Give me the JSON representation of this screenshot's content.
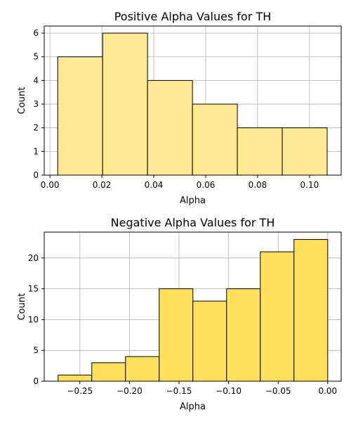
{
  "chart_data": [
    {
      "type": "bar",
      "title": "Positive Alpha Values for TH",
      "xlabel": "Alpha",
      "ylabel": "Count",
      "bin_edges": [
        0.003,
        0.0203,
        0.0376,
        0.0549,
        0.0722,
        0.0895,
        0.1068
      ],
      "values": [
        5,
        6,
        4,
        3,
        2,
        2
      ],
      "xlim": [
        -0.0022,
        0.1122
      ],
      "ylim": [
        0,
        6.3
      ],
      "xticks": [
        0.0,
        0.02,
        0.04,
        0.06,
        0.08,
        0.1
      ],
      "xtick_labels": [
        "0.00",
        "0.02",
        "0.04",
        "0.06",
        "0.08",
        "0.10"
      ],
      "yticks": [
        0,
        1,
        2,
        3,
        4,
        5,
        6
      ],
      "ytick_labels": [
        "0",
        "1",
        "2",
        "3",
        "4",
        "5",
        "6"
      ],
      "grid": true,
      "bar_color": "#ffe994",
      "edge_color": "#000000"
    },
    {
      "type": "bar",
      "title": "Negative Alpha Values for TH",
      "xlabel": "Alpha",
      "ylabel": "Count",
      "bin_edges": [
        -0.272,
        -0.238,
        -0.204,
        -0.17,
        -0.136,
        -0.102,
        -0.068,
        -0.034,
        0.0
      ],
      "values": [
        1,
        3,
        4,
        15,
        13,
        15,
        21,
        23
      ],
      "xlim": [
        -0.286,
        0.0136
      ],
      "ylim": [
        0,
        24.2
      ],
      "xticks": [
        -0.25,
        -0.2,
        -0.15,
        -0.1,
        -0.05,
        0.0
      ],
      "xtick_labels": [
        "−0.25",
        "−0.20",
        "−0.15",
        "−0.10",
        "−0.05",
        "0.00"
      ],
      "yticks": [
        0,
        5,
        10,
        15,
        20
      ],
      "ytick_labels": [
        "0",
        "5",
        "10",
        "15",
        "20"
      ],
      "grid": true,
      "bar_color": "#ffe05a",
      "edge_color": "#000000"
    }
  ]
}
